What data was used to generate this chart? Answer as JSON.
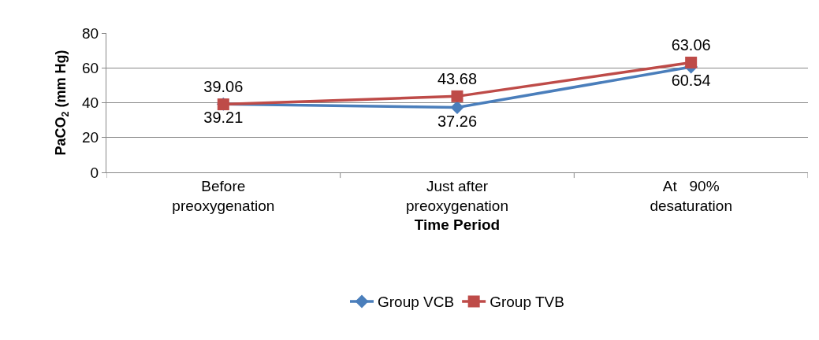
{
  "chart_data": {
    "type": "line",
    "xlabel": "Time Period",
    "ylabel": "PaCO$_{2}$ (mm Hg)",
    "categories": [
      "Before\npreoxygenation",
      "Just after\npreoxygenation",
      "At   90%\ndesaturation"
    ],
    "series": [
      {
        "name": "Group VCB",
        "color": "#4a7ebb",
        "values": [
          39.21,
          37.26,
          60.54
        ],
        "marker": "diamond"
      },
      {
        "name": "Group TVB",
        "color": "#be4b48",
        "values": [
          39.06,
          43.68,
          63.06
        ],
        "marker": "square"
      }
    ],
    "ylim": [
      0,
      80
    ],
    "yticks": [
      0,
      20,
      40,
      60,
      80
    ],
    "grid": "y",
    "legend": "bottom",
    "data_labels": true,
    "line_style": "solid"
  }
}
